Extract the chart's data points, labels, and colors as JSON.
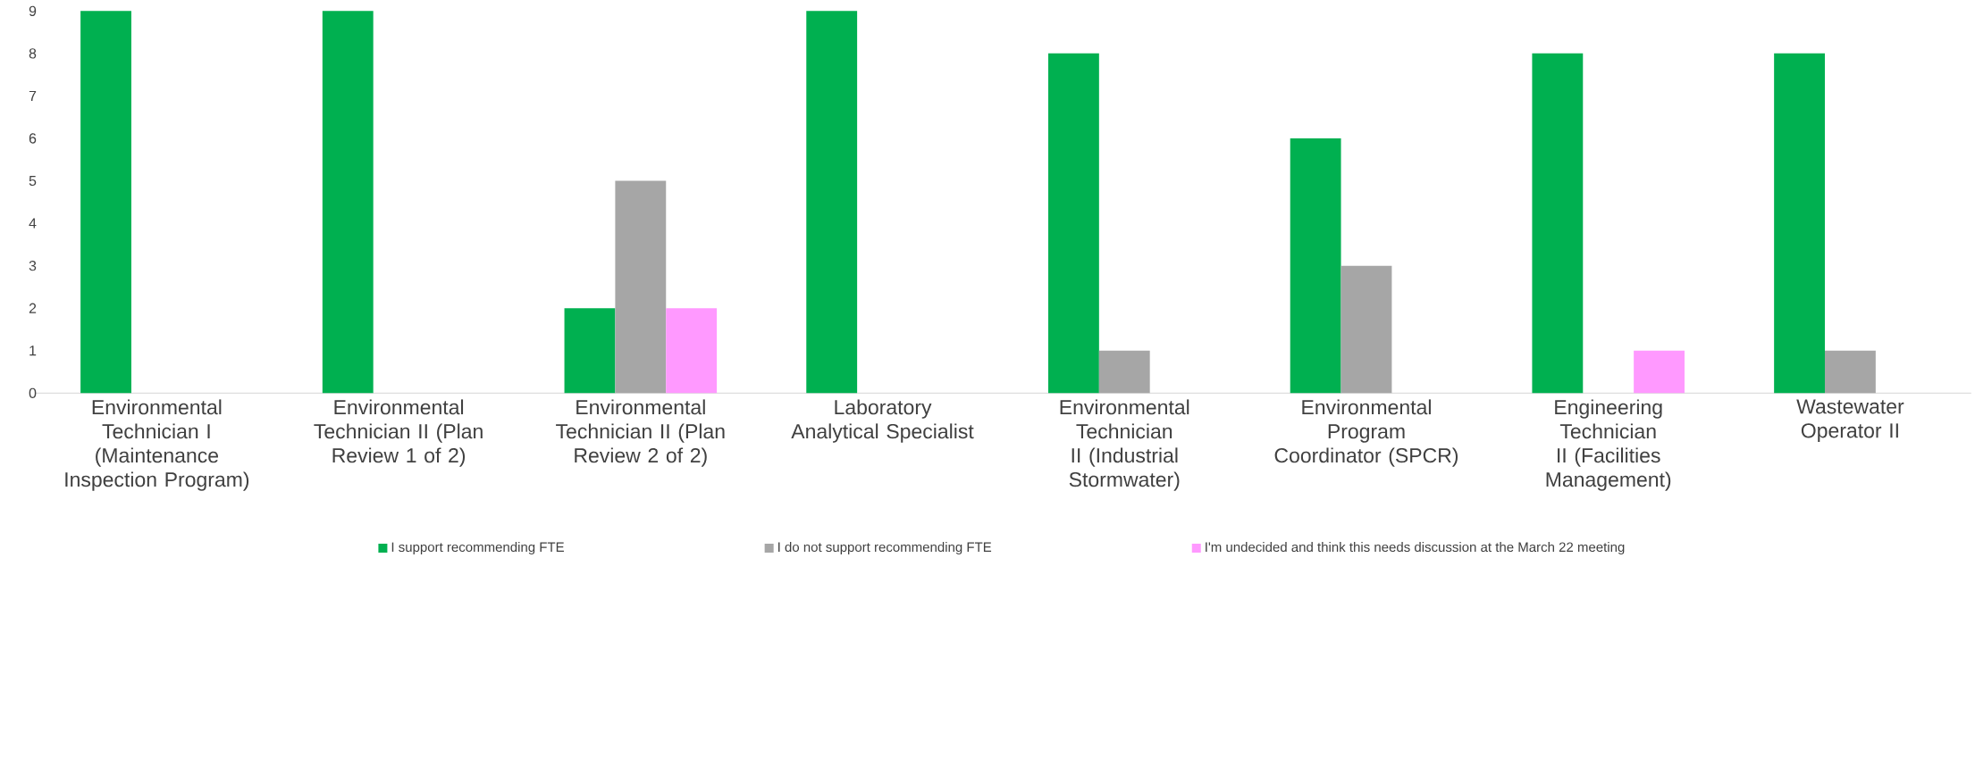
{
  "chart_data": {
    "type": "bar",
    "categories": [
      "Environmental Technician I (Maintenance Inspection Program)",
      "Environmental Technician II (Plan Review 1 of 2)",
      "Environmental Technician II (Plan Review 2 of 2)",
      "Laboratory Analytical Specialist",
      "Environmental Technician II (Industrial Stormwater)",
      "Environmental Program Coordinator (SPCR)",
      "Engineering Technician II (Facilities Management)",
      "Wastewater Operator II"
    ],
    "series": [
      {
        "name": "I support recommending FTE",
        "color": "#00b050",
        "values": [
          9,
          9,
          2,
          9,
          8,
          6,
          8,
          8
        ]
      },
      {
        "name": "I do not support recommending FTE",
        "color": "#a6a6a6",
        "values": [
          0,
          0,
          5,
          0,
          1,
          3,
          0,
          1
        ]
      },
      {
        "name": "I'm undecided and think this needs discussion at the March 22 meeting",
        "color": "#ff99ff",
        "values": [
          0,
          0,
          2,
          0,
          0,
          0,
          1,
          0
        ]
      }
    ],
    "ylim": [
      0,
      9
    ],
    "yticks": [
      0,
      1,
      2,
      3,
      4,
      5,
      6,
      7,
      8,
      9
    ],
    "legend": "bottom"
  }
}
